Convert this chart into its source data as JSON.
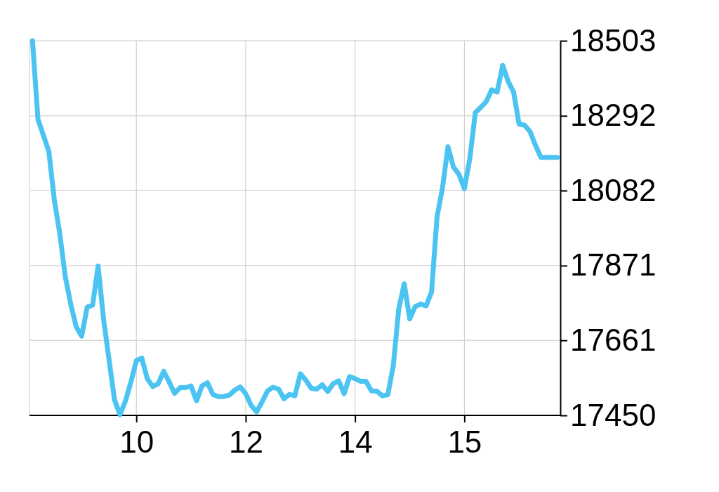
{
  "chart_data": {
    "type": "line",
    "categories": [
      null,
      null,
      null,
      null,
      null,
      null,
      null,
      null,
      null,
      null,
      null,
      null,
      null,
      null,
      null,
      null,
      null,
      null,
      null,
      "10",
      null,
      null,
      null,
      null,
      null,
      null,
      null,
      null,
      null,
      null,
      null,
      null,
      null,
      null,
      null,
      null,
      null,
      null,
      null,
      "12",
      null,
      null,
      null,
      null,
      null,
      null,
      null,
      null,
      null,
      null,
      null,
      null,
      null,
      null,
      null,
      null,
      null,
      null,
      null,
      "14",
      null,
      null,
      null,
      null,
      null,
      null,
      null,
      null,
      null,
      null,
      null,
      null,
      null,
      null,
      null,
      null,
      null,
      null,
      null,
      "15",
      null,
      null,
      null,
      null,
      null,
      null,
      null,
      null,
      null,
      null,
      null,
      null,
      null,
      null,
      null,
      null,
      null
    ],
    "series": [
      {
        "color": "#4cc4f2",
        "values": [
          18503,
          18282,
          18237,
          18191,
          18055,
          17960,
          17840,
          17762,
          17699,
          17673,
          17754,
          17760,
          17870,
          17720,
          17607,
          17494,
          17452,
          17490,
          17544,
          17604,
          17611,
          17553,
          17531,
          17539,
          17574,
          17544,
          17512,
          17528,
          17528,
          17533,
          17491,
          17533,
          17542,
          17509,
          17503,
          17503,
          17507,
          17521,
          17530,
          17511,
          17478,
          17460,
          17488,
          17519,
          17529,
          17524,
          17497,
          17509,
          17505,
          17567,
          17549,
          17526,
          17524,
          17536,
          17517,
          17539,
          17547,
          17511,
          17559,
          17553,
          17546,
          17546,
          17519,
          17518,
          17505,
          17508,
          17590,
          17750,
          17820,
          17721,
          17756,
          17763,
          17758,
          17797,
          18008,
          18090,
          18205,
          18148,
          18128,
          18087,
          18172,
          18301,
          18316,
          18332,
          18365,
          18359,
          18434,
          18389,
          18359,
          18269,
          18266,
          18248,
          18209,
          18175,
          18175,
          18175,
          18175
        ]
      }
    ],
    "ylim": [
      17450,
      18503
    ],
    "yticks": [
      17450,
      17661,
      17871,
      18082,
      18292,
      18503
    ],
    "grid": true,
    "marker": "none",
    "line_style": "solid"
  }
}
